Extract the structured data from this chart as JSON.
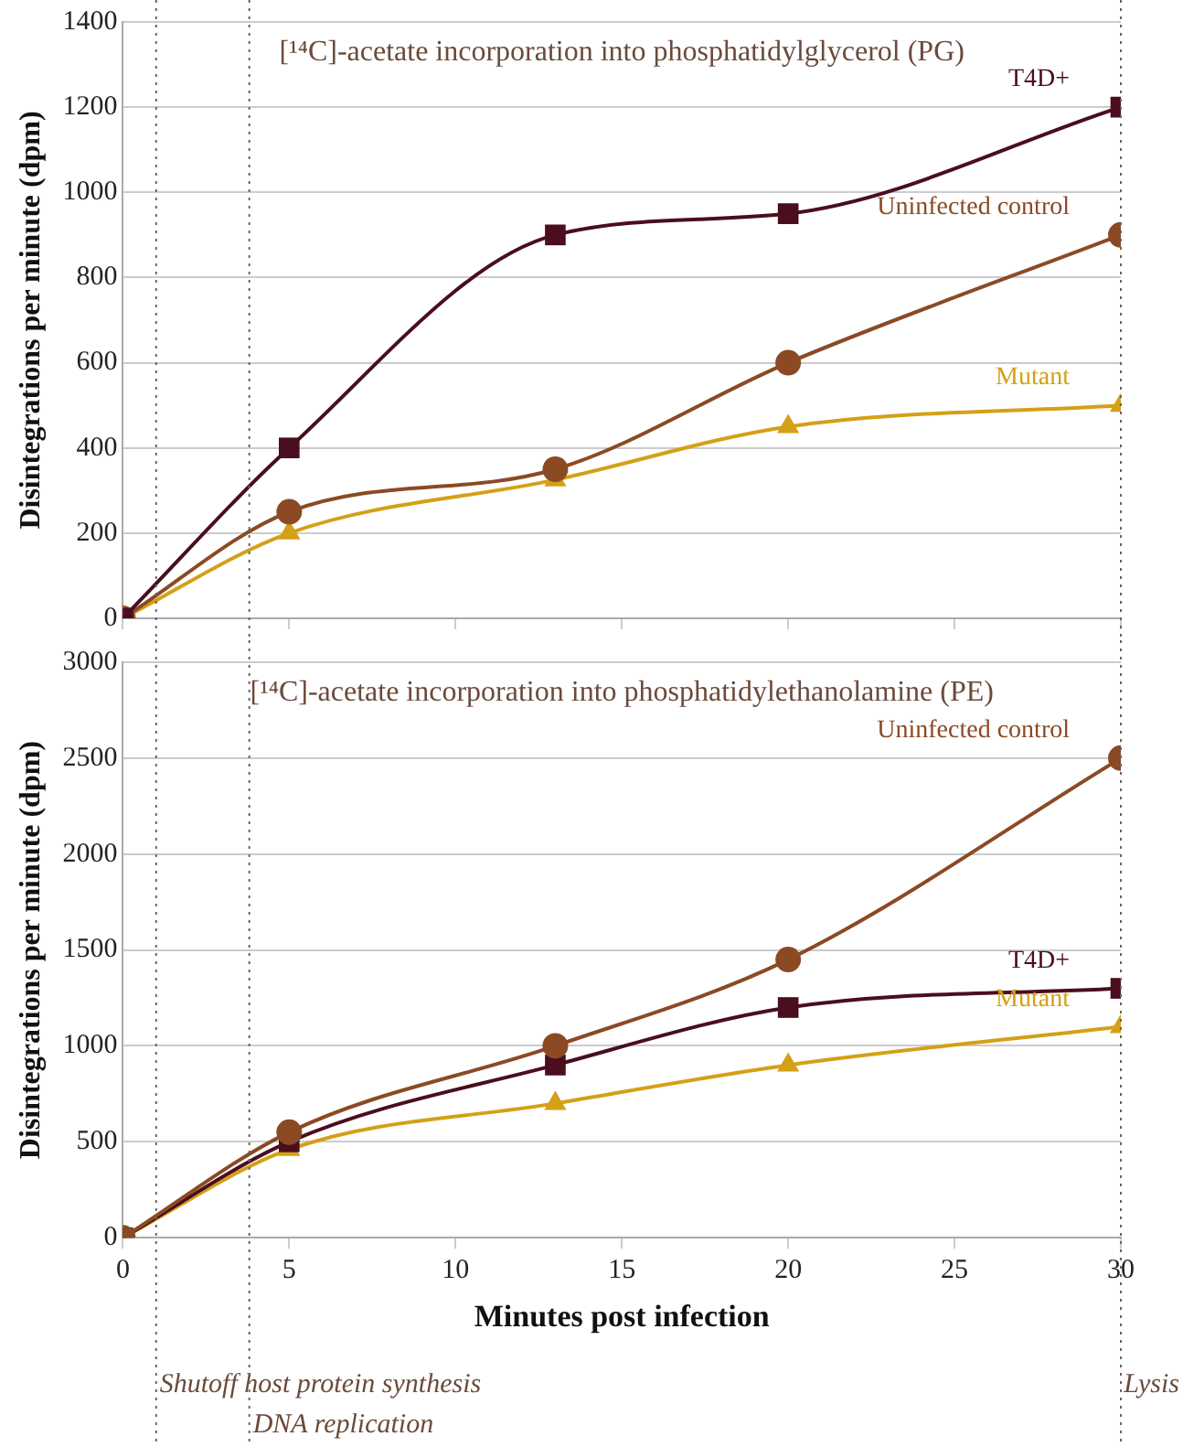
{
  "chart_data": [
    {
      "type": "line",
      "title": "[¹⁴C]-acetate incorporation into phosphatidylglycerol (PG)",
      "ylabel": "Disintegrations per minute (dpm)",
      "x": [
        0,
        5,
        13,
        20,
        30
      ],
      "xlim": [
        0,
        30
      ],
      "xticks": [
        0,
        5,
        10,
        15,
        20,
        25,
        30
      ],
      "ylim": [
        0,
        1400
      ],
      "yticks": [
        0,
        200,
        400,
        600,
        800,
        1000,
        1200,
        1400
      ],
      "grid": "y",
      "legend": false,
      "tick_labels": "y",
      "series": [
        {
          "name": "T4D+",
          "color": "#4a0e1e",
          "marker": "square",
          "values": [
            0,
            400,
            900,
            950,
            1200
          ]
        },
        {
          "name": "Uninfected control",
          "color": "#8b4a24",
          "marker": "circle",
          "values": [
            0,
            250,
            350,
            600,
            900
          ]
        },
        {
          "name": "Mutant",
          "color": "#d4a017",
          "marker": "triangle",
          "values": [
            0,
            200,
            325,
            450,
            500
          ]
        }
      ],
      "ref_lines": [
        {
          "axis": "x",
          "value": 1,
          "line_style": "dotted"
        },
        {
          "axis": "x",
          "value": 3.8,
          "line_style": "dotted"
        },
        {
          "axis": "x",
          "value": 30,
          "line_style": "dotted"
        }
      ]
    },
    {
      "type": "line",
      "title": "[¹⁴C]-acetate incorporation into phosphatidylethanolamine (PE)",
      "xlabel": "Minutes post infection",
      "ylabel": "Disintegrations per minute (dpm)",
      "x": [
        0,
        5,
        13,
        20,
        30
      ],
      "xlim": [
        0,
        30
      ],
      "xticks": [
        0,
        5,
        10,
        15,
        20,
        25,
        30
      ],
      "ylim": [
        0,
        3000
      ],
      "yticks": [
        0,
        500,
        1000,
        1500,
        2000,
        2500,
        3000
      ],
      "grid": "y",
      "legend": false,
      "series": [
        {
          "name": "Uninfected control",
          "color": "#8b4a24",
          "marker": "circle",
          "values": [
            0,
            550,
            1000,
            1450,
            2500
          ]
        },
        {
          "name": "T4D+",
          "color": "#4a0e1e",
          "marker": "square",
          "values": [
            0,
            500,
            900,
            1200,
            1300
          ]
        },
        {
          "name": "Mutant",
          "color": "#d4a017",
          "marker": "triangle",
          "values": [
            0,
            460,
            700,
            900,
            1100
          ]
        }
      ],
      "ref_lines": [
        {
          "axis": "x",
          "value": 1,
          "label": "Shutoff host protein synthesis",
          "line_style": "dotted"
        },
        {
          "axis": "x",
          "value": 3.8,
          "label": "DNA replication",
          "line_style": "dotted"
        },
        {
          "axis": "x",
          "value": 30,
          "label": "Lysis",
          "line_style": "dotted"
        }
      ]
    }
  ]
}
